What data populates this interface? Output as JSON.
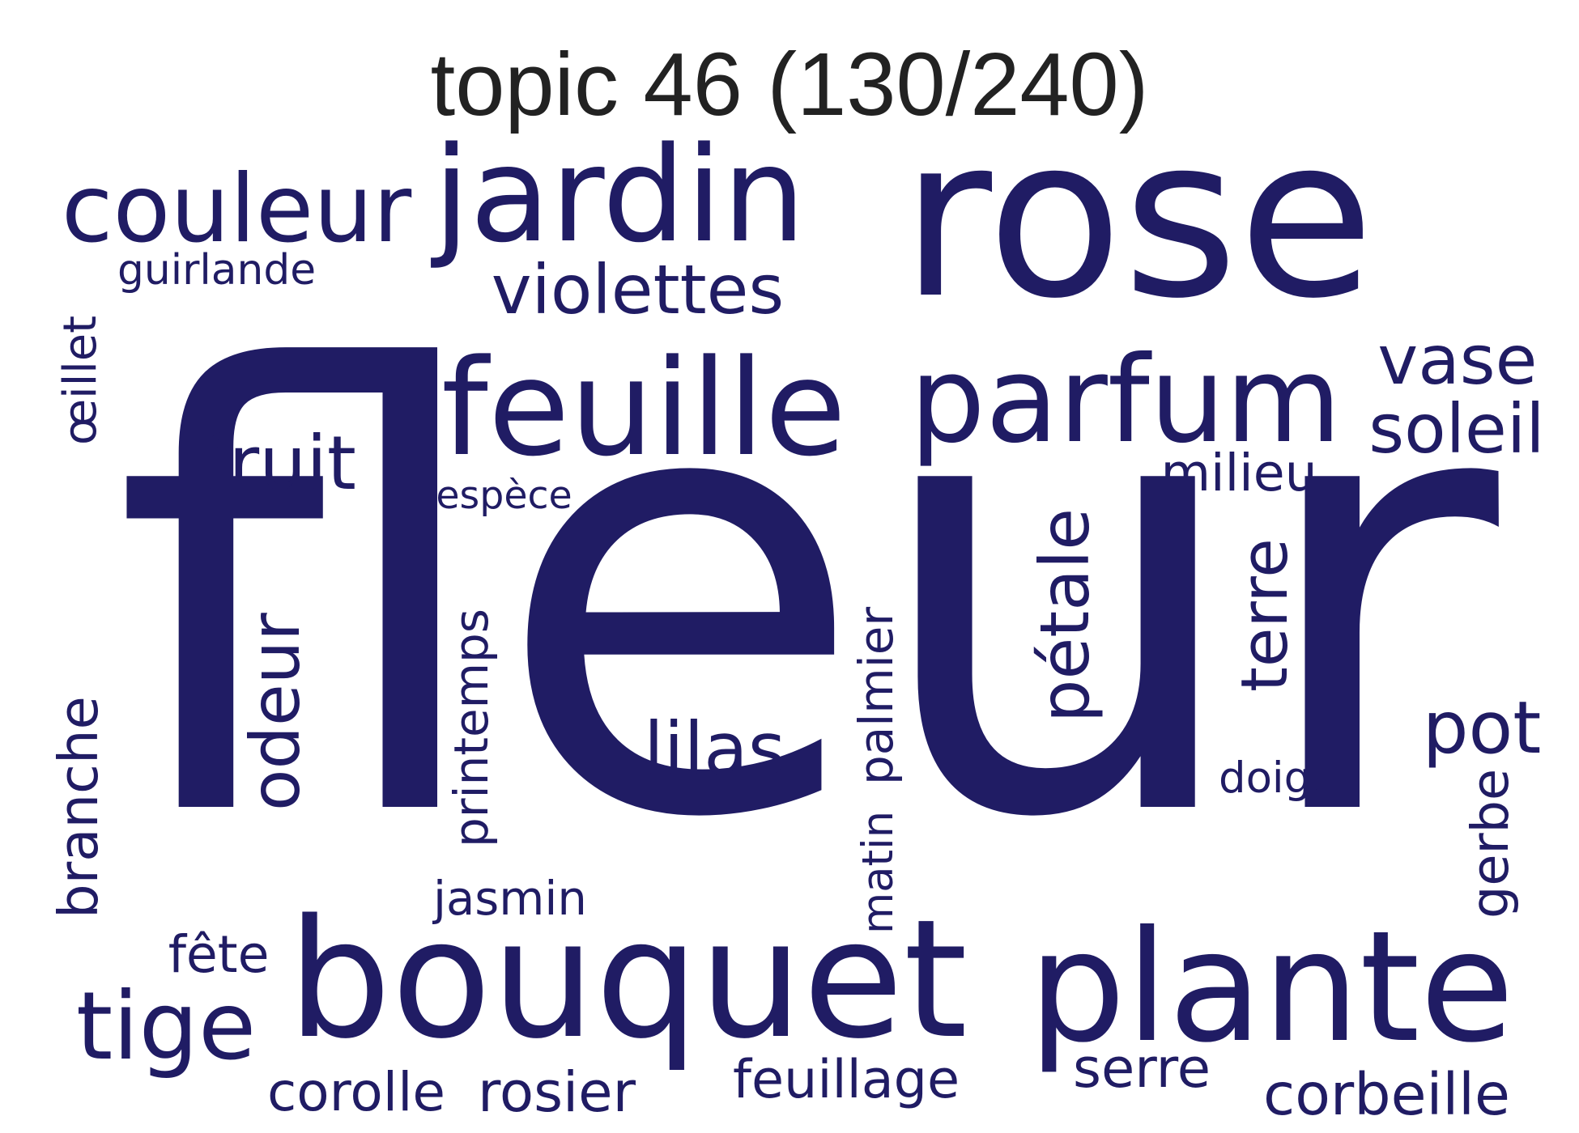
{
  "title": "topic 46 (130/240)",
  "color": "#201c64",
  "words": [
    {
      "text": "fleur"
    },
    {
      "text": "rose"
    },
    {
      "text": "jardin"
    },
    {
      "text": "couleur"
    },
    {
      "text": "violettes"
    },
    {
      "text": "guirlande"
    },
    {
      "text": "feuille"
    },
    {
      "text": "parfum"
    },
    {
      "text": "vase"
    },
    {
      "text": "soleil"
    },
    {
      "text": "milieu"
    },
    {
      "text": "fruit"
    },
    {
      "text": "espèce"
    },
    {
      "text": "œillet"
    },
    {
      "text": "pétale"
    },
    {
      "text": "terre"
    },
    {
      "text": "odeur"
    },
    {
      "text": "printemps"
    },
    {
      "text": "palmier"
    },
    {
      "text": "matin"
    },
    {
      "text": "lilas"
    },
    {
      "text": "pot"
    },
    {
      "text": "doigt"
    },
    {
      "text": "gerbe"
    },
    {
      "text": "branche"
    },
    {
      "text": "jasmin"
    },
    {
      "text": "fête"
    },
    {
      "text": "tige"
    },
    {
      "text": "bouquet"
    },
    {
      "text": "plante"
    },
    {
      "text": "corolle"
    },
    {
      "text": "rosier"
    },
    {
      "text": "feuillage"
    },
    {
      "text": "serre"
    },
    {
      "text": "corbeille"
    }
  ]
}
